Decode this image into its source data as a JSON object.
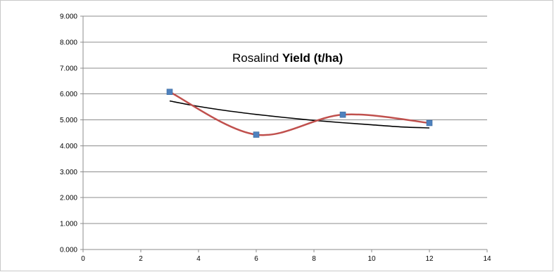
{
  "chart_data": {
    "type": "scatter",
    "title_regular": "Rosalind ",
    "title_bold": "Yield (t/ha)",
    "xlim": [
      0,
      14
    ],
    "ylim": [
      0,
      9
    ],
    "x_ticks": [
      "0",
      "2",
      "4",
      "6",
      "8",
      "10",
      "12",
      "14"
    ],
    "y_ticks": [
      "0.000",
      "1.000",
      "2.000",
      "3.000",
      "4.000",
      "5.000",
      "6.000",
      "7.000",
      "8.000",
      "9.000"
    ],
    "grid": "horizontal",
    "series": [
      {
        "x": [
          3,
          6,
          9,
          12
        ],
        "values": [
          6.08,
          4.43,
          5.2,
          4.88
        ],
        "line": "smooth",
        "line_color": "#C0504D",
        "marker_color": "#4F81BD",
        "marker": "square"
      }
    ],
    "trendline": {
      "color": "#000000",
      "x": [
        3,
        4,
        5,
        6,
        7,
        8,
        9,
        10,
        11,
        12
      ],
      "values": [
        5.73,
        5.52,
        5.35,
        5.21,
        5.09,
        4.98,
        4.89,
        4.81,
        4.73,
        4.69
      ]
    }
  }
}
